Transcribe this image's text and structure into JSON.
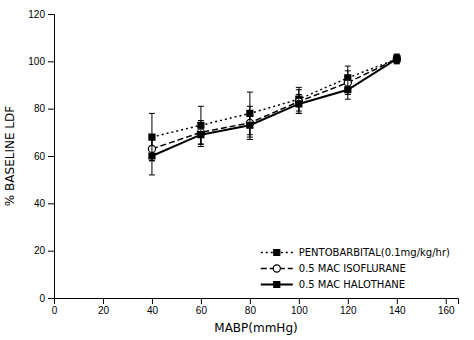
{
  "chart_data": {
    "type": "line",
    "xlabel": "MABP(mmHg)",
    "ylabel": "% BASELINE LDF",
    "x": [
      40,
      60,
      80,
      100,
      120,
      140
    ],
    "series": [
      {
        "name": "PENTOBARBITAL(0.1mg/kg/hr)",
        "color": "#000000",
        "marker": "square",
        "line_style": "dotted",
        "values": [
          68,
          73,
          78,
          84,
          93,
          101
        ],
        "errors": [
          10,
          8,
          9,
          5,
          5,
          2
        ]
      },
      {
        "name": "0.5 MAC ISOFLURANE",
        "color": "#000000",
        "marker": "open-circle",
        "line_style": "dashed",
        "values": [
          63,
          70,
          74,
          83,
          91,
          101
        ],
        "errors": [
          5,
          5,
          7,
          5,
          5,
          2
        ]
      },
      {
        "name": "0.5 MAC HALOTHANE",
        "color": "#000000",
        "marker": "square",
        "line_style": "solid",
        "values": [
          60,
          69,
          73,
          82,
          88,
          101
        ],
        "errors": [
          8,
          5,
          5,
          4,
          4,
          1
        ]
      }
    ],
    "xlim": [
      0,
      165
    ],
    "ylim": [
      0,
      120
    ],
    "xticks": [
      0,
      20,
      40,
      60,
      80,
      100,
      120,
      140,
      160
    ],
    "yticks": [
      0,
      20,
      40,
      60,
      80,
      100,
      120
    ],
    "legend": "lower right",
    "grid": false
  }
}
